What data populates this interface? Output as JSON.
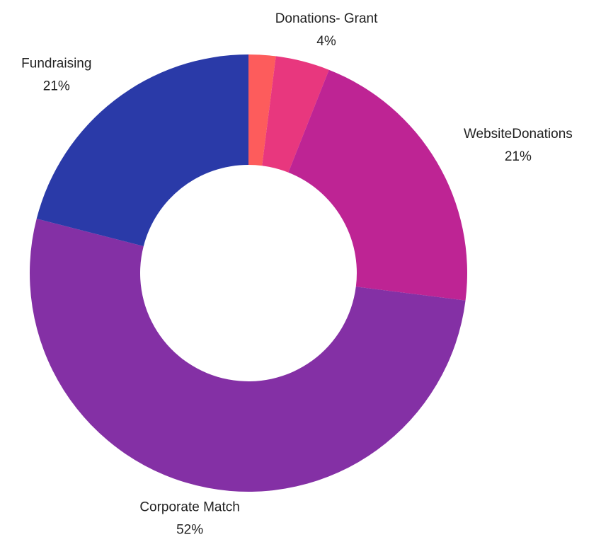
{
  "chart_data": {
    "type": "donut",
    "categories": [
      null,
      "Donations- Grant",
      "WebsiteDonations",
      "Corporate Match",
      "Fundraising"
    ],
    "values": [
      2,
      4,
      21,
      52,
      21
    ],
    "value_labels": [
      null,
      "4%",
      "21%",
      "52%",
      "21%"
    ],
    "colors": [
      "#fd5c5c",
      "#e8377e",
      "#be2494",
      "#8430a5",
      "#2a3aa8"
    ]
  }
}
